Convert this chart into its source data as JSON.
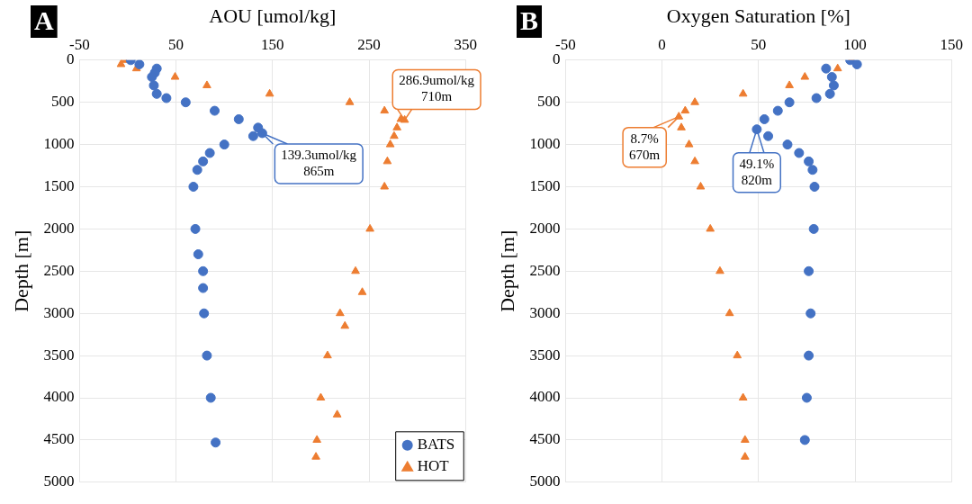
{
  "chart_data": [
    {
      "type": "scatter",
      "title": "A",
      "xlabel": "AOU [umol/kg]",
      "ylabel": "Depth [m]",
      "xlim": [
        -50,
        350
      ],
      "xticks": [
        -50,
        50,
        150,
        250,
        350
      ],
      "ylim": [
        5000,
        0
      ],
      "yticks": [
        0,
        500,
        1000,
        1500,
        2000,
        2500,
        3000,
        3500,
        4000,
        4500,
        5000
      ],
      "grid": true,
      "legend": "bottom right",
      "annotations": [
        {
          "text": "139.3umol/kg\n865m",
          "x": 139.3,
          "y": 865
        },
        {
          "text": "286.9umol/kg\n710m",
          "x": 286.9,
          "y": 710
        }
      ],
      "series": [
        {
          "name": "BATS",
          "color": "#4472c4",
          "marker": "circle",
          "x": [
            3,
            12,
            30,
            28,
            25,
            27,
            30,
            40,
            60,
            90,
            115,
            135,
            139.3,
            130,
            100,
            85,
            78,
            72,
            68,
            70,
            73,
            78,
            78,
            79,
            82,
            86,
            91
          ],
          "values": [
            0,
            50,
            100,
            150,
            200,
            300,
            400,
            450,
            500,
            600,
            700,
            800,
            865,
            900,
            1000,
            1100,
            1200,
            1300,
            1500,
            2000,
            2300,
            2500,
            2700,
            3000,
            3500,
            4000,
            4530
          ]
        },
        {
          "name": "HOT",
          "color": "#ed7d31",
          "marker": "triangle",
          "x": [
            -4,
            -7,
            9,
            49,
            82,
            147,
            230,
            266,
            283,
            286.9,
            279,
            276,
            272,
            269,
            266,
            251,
            236,
            243,
            220,
            225,
            207,
            200,
            217,
            196,
            195
          ],
          "values": [
            0,
            50,
            100,
            200,
            300,
            400,
            500,
            600,
            700,
            710,
            800,
            900,
            1000,
            1200,
            1500,
            2000,
            2500,
            2750,
            3000,
            3150,
            3500,
            4000,
            4200,
            4500,
            4700
          ]
        }
      ]
    },
    {
      "type": "scatter",
      "title": "B",
      "xlabel": "Oxygen Saturation [%]",
      "ylabel": "Depth [m]",
      "xlim": [
        -50,
        150
      ],
      "xticks": [
        -50,
        0,
        50,
        100,
        150
      ],
      "ylim": [
        5000,
        0
      ],
      "yticks": [
        0,
        500,
        1000,
        1500,
        2000,
        2500,
        3000,
        3500,
        4000,
        4500,
        5000
      ],
      "grid": true,
      "annotations": [
        {
          "text": "49.1%\n820m",
          "x": 49.1,
          "y": 820
        },
        {
          "text": "8.7%\n670m",
          "x": 8.7,
          "y": 670
        }
      ],
      "series": [
        {
          "color": "#4472c4",
          "marker": "circle",
          "x": [
            97.5,
            101,
            85,
            88,
            89,
            87,
            80,
            66,
            60,
            53,
            49.1,
            55,
            65,
            71,
            76,
            78,
            79,
            78.6,
            76,
            77,
            76,
            75,
            74
          ],
          "values": [
            0,
            50,
            100,
            200,
            300,
            400,
            450,
            500,
            600,
            700,
            820,
            900,
            1000,
            1100,
            1200,
            1300,
            1500,
            2000,
            2500,
            3000,
            3500,
            4000,
            4500
          ]
        },
        {
          "color": "#ed7d31",
          "marker": "triangle",
          "x": [
            98,
            91,
            74,
            66,
            42,
            17,
            12,
            8.7,
            10,
            14,
            17,
            20,
            25,
            30,
            35,
            39,
            42,
            43,
            43
          ],
          "values": [
            0,
            100,
            200,
            300,
            400,
            500,
            600,
            670,
            800,
            1000,
            1200,
            1500,
            2000,
            2500,
            3000,
            3500,
            4000,
            4500,
            4700
          ]
        }
      ]
    }
  ]
}
